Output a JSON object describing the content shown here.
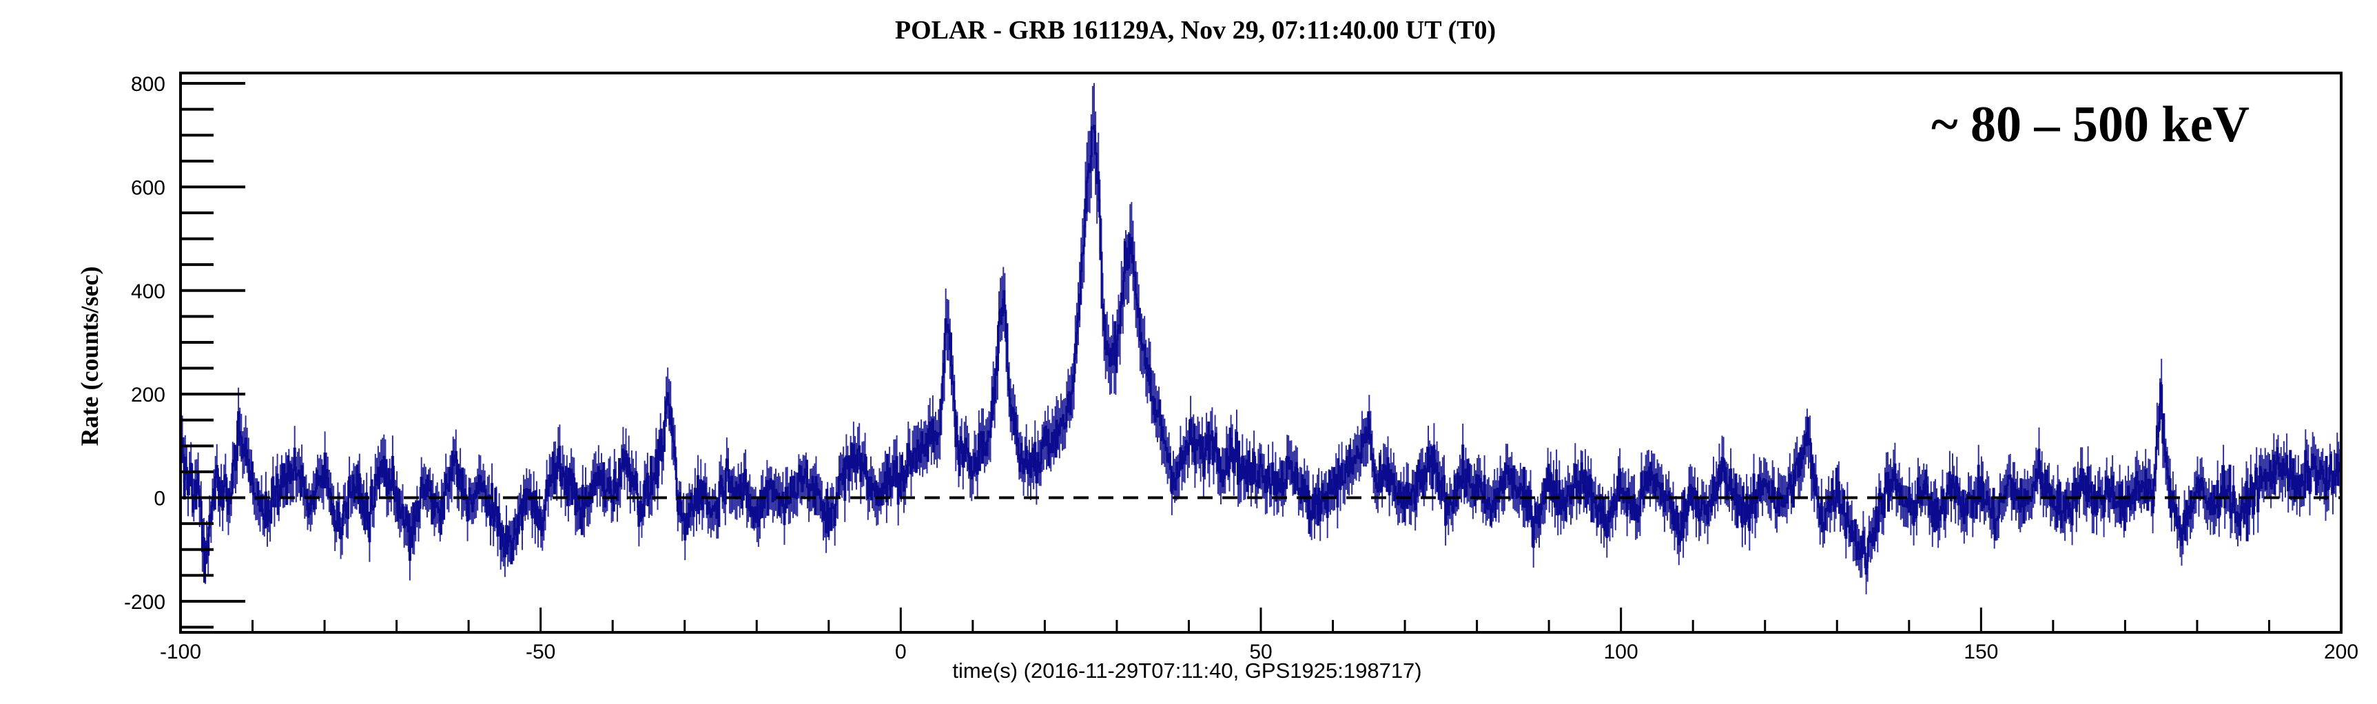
{
  "chart_data": {
    "type": "line",
    "title": "POLAR - GRB 161129A, Nov 29, 07:11:40.00 UT (T0)",
    "xlabel": "time(s) (2016-11-29T07:11:40, GPS1925:198717)",
    "ylabel": "Rate (counts/sec)",
    "annotation": "~ 80 – 500 keV",
    "xlim": [
      -100,
      200
    ],
    "ylim": [
      -260,
      820
    ],
    "x_ticks": [
      -100,
      -50,
      0,
      50,
      100,
      150,
      200
    ],
    "y_ticks": [
      -200,
      0,
      200,
      400,
      600,
      800
    ],
    "grid": false,
    "legend": "none",
    "baseline": {
      "y": 0,
      "style": "dashed"
    },
    "series": [
      {
        "color": "#0b0b8f",
        "bin_width": 0.1,
        "error_bars": true,
        "points": [
          [
            -100,
            80
          ],
          [
            -99,
            40
          ],
          [
            -98,
            20
          ],
          [
            -97.5,
            30
          ],
          [
            -96.5,
            -150
          ],
          [
            -96,
            -60
          ],
          [
            -95,
            40
          ],
          [
            -93,
            10
          ],
          [
            -92,
            130
          ],
          [
            -90,
            20
          ],
          [
            -88,
            -30
          ],
          [
            -86,
            20
          ],
          [
            -84,
            70
          ],
          [
            -82,
            -20
          ],
          [
            -80,
            50
          ],
          [
            -78,
            -60
          ],
          [
            -76,
            30
          ],
          [
            -74,
            -40
          ],
          [
            -72,
            60
          ],
          [
            -70,
            10
          ],
          [
            -68,
            -80
          ],
          [
            -66,
            30
          ],
          [
            -64,
            -40
          ],
          [
            -62,
            70
          ],
          [
            -60,
            -10
          ],
          [
            -58,
            20
          ],
          [
            -56,
            -50
          ],
          [
            -54,
            -100
          ],
          [
            -52,
            10
          ],
          [
            -50,
            -40
          ],
          [
            -48,
            60
          ],
          [
            -46,
            30
          ],
          [
            -44,
            -30
          ],
          [
            -42,
            40
          ],
          [
            -40,
            10
          ],
          [
            -38,
            80
          ],
          [
            -36,
            -20
          ],
          [
            -34,
            50
          ],
          [
            -32,
            180
          ],
          [
            -31,
            0
          ],
          [
            -30,
            -60
          ],
          [
            -28,
            20
          ],
          [
            -26,
            -30
          ],
          [
            -24,
            50
          ],
          [
            -22,
            10
          ],
          [
            -20,
            -40
          ],
          [
            -18,
            30
          ],
          [
            -16,
            -20
          ],
          [
            -14,
            50
          ],
          [
            -12,
            10
          ],
          [
            -10,
            -40
          ],
          [
            -8,
            40
          ],
          [
            -6,
            90
          ],
          [
            -4,
            10
          ],
          [
            -2,
            30
          ],
          [
            0,
            40
          ],
          [
            1,
            60
          ],
          [
            2,
            80
          ],
          [
            3,
            110
          ],
          [
            4,
            120
          ],
          [
            5,
            100
          ],
          [
            5.8,
            180
          ],
          [
            6.2,
            330
          ],
          [
            7,
            300
          ],
          [
            7.5,
            160
          ],
          [
            8,
            90
          ],
          [
            9,
            70
          ],
          [
            10,
            60
          ],
          [
            11,
            110
          ],
          [
            12,
            90
          ],
          [
            13,
            200
          ],
          [
            13.8,
            360
          ],
          [
            14.5,
            380
          ],
          [
            15,
            220
          ],
          [
            16,
            120
          ],
          [
            17,
            60
          ],
          [
            18,
            80
          ],
          [
            19,
            50
          ],
          [
            20,
            120
          ],
          [
            21,
            110
          ],
          [
            22,
            140
          ],
          [
            23,
            150
          ],
          [
            24,
            230
          ],
          [
            25,
            410
          ],
          [
            26,
            630
          ],
          [
            26.8,
            720
          ],
          [
            27.5,
            600
          ],
          [
            28,
            360
          ],
          [
            29,
            260
          ],
          [
            30,
            300
          ],
          [
            31,
            430
          ],
          [
            32,
            500
          ],
          [
            33,
            360
          ],
          [
            34,
            250
          ],
          [
            35,
            180
          ],
          [
            36,
            150
          ],
          [
            37,
            90
          ],
          [
            38,
            40
          ],
          [
            39,
            60
          ],
          [
            40,
            110
          ],
          [
            41,
            100
          ],
          [
            42,
            80
          ],
          [
            43,
            120
          ],
          [
            44,
            90
          ],
          [
            45,
            60
          ],
          [
            46,
            100
          ],
          [
            47,
            70
          ],
          [
            48,
            40
          ],
          [
            50,
            60
          ],
          [
            52,
            30
          ],
          [
            54,
            50
          ],
          [
            56,
            20
          ],
          [
            57,
            -40
          ],
          [
            58,
            -10
          ],
          [
            60,
            30
          ],
          [
            62,
            50
          ],
          [
            64,
            90
          ],
          [
            65,
            140
          ],
          [
            66,
            20
          ],
          [
            68,
            40
          ],
          [
            70,
            -20
          ],
          [
            72,
            30
          ],
          [
            74,
            60
          ],
          [
            76,
            -10
          ],
          [
            78,
            40
          ],
          [
            80,
            20
          ],
          [
            82,
            -30
          ],
          [
            84,
            50
          ],
          [
            86,
            10
          ],
          [
            88,
            -40
          ],
          [
            90,
            30
          ],
          [
            92,
            -10
          ],
          [
            94,
            40
          ],
          [
            96,
            0
          ],
          [
            98,
            -50
          ],
          [
            100,
            20
          ],
          [
            102,
            -30
          ],
          [
            104,
            40
          ],
          [
            106,
            10
          ],
          [
            108,
            -60
          ],
          [
            110,
            20
          ],
          [
            112,
            -40
          ],
          [
            114,
            50
          ],
          [
            116,
            0
          ],
          [
            118,
            -30
          ],
          [
            120,
            40
          ],
          [
            122,
            -20
          ],
          [
            124,
            30
          ],
          [
            126,
            120
          ],
          [
            127,
            10
          ],
          [
            128,
            -40
          ],
          [
            130,
            20
          ],
          [
            132,
            -60
          ],
          [
            134,
            -120
          ],
          [
            136,
            -10
          ],
          [
            138,
            30
          ],
          [
            140,
            -30
          ],
          [
            142,
            20
          ],
          [
            144,
            -50
          ],
          [
            146,
            40
          ],
          [
            148,
            -20
          ],
          [
            150,
            10
          ],
          [
            152,
            -40
          ],
          [
            154,
            30
          ],
          [
            156,
            -20
          ],
          [
            158,
            50
          ],
          [
            160,
            0
          ],
          [
            162,
            -30
          ],
          [
            164,
            40
          ],
          [
            166,
            -10
          ],
          [
            168,
            20
          ],
          [
            170,
            -30
          ],
          [
            172,
            30
          ],
          [
            174,
            10
          ],
          [
            175,
            200
          ],
          [
            176,
            10
          ],
          [
            178,
            -60
          ],
          [
            180,
            20
          ],
          [
            182,
            -20
          ],
          [
            184,
            30
          ],
          [
            186,
            -50
          ],
          [
            188,
            20
          ],
          [
            190,
            40
          ],
          [
            192,
            70
          ],
          [
            194,
            10
          ],
          [
            196,
            60
          ],
          [
            198,
            30
          ],
          [
            200,
            50
          ]
        ]
      }
    ]
  }
}
